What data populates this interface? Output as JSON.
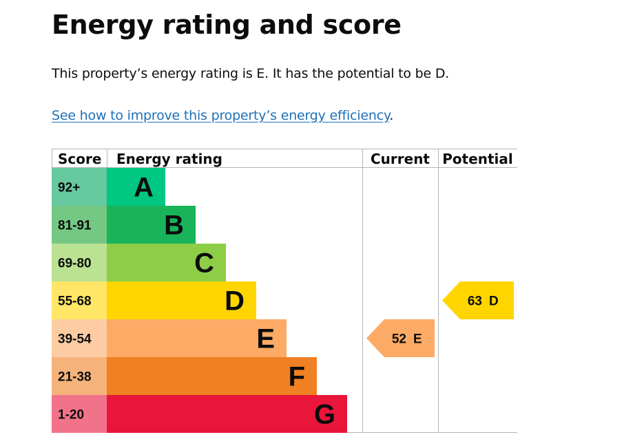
{
  "page": {
    "title": "Energy rating and score",
    "summary": "This property’s energy rating is E. It has the potential to be D.",
    "link_text": "See how to improve this property’s energy efficiency",
    "link_suffix": "."
  },
  "colors": {
    "A": "#00c781",
    "B": "#19b459",
    "C": "#8dce46",
    "D": "#ffd500",
    "E": "#fcaa65",
    "F": "#ef8023",
    "G": "#e9153b",
    "score_A": "#67c9a0",
    "score_B": "#74c883",
    "score_C": "#bbe192",
    "score_D": "#ffe666",
    "score_E": "#fdcca3",
    "score_F": "#f5b37b",
    "score_G": "#f27389",
    "link": "#1d70b8",
    "grid": "#b1b4b6"
  },
  "chart_data": {
    "type": "bar",
    "headers": {
      "score": "Score",
      "rating": "Energy rating",
      "current": "Current",
      "potential": "Potential"
    },
    "bands": [
      {
        "letter": "A",
        "range": "92+"
      },
      {
        "letter": "B",
        "range": "81-91"
      },
      {
        "letter": "C",
        "range": "69-80"
      },
      {
        "letter": "D",
        "range": "55-68"
      },
      {
        "letter": "E",
        "range": "39-54"
      },
      {
        "letter": "F",
        "range": "21-38"
      },
      {
        "letter": "G",
        "range": "1-20"
      }
    ],
    "current": {
      "score": 52,
      "letter": "E"
    },
    "potential": {
      "score": 63,
      "letter": "D"
    }
  }
}
